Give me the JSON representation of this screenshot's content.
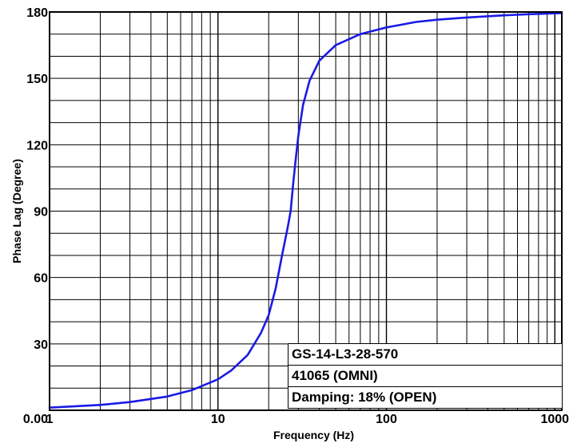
{
  "chart_data": {
    "type": "line",
    "xlabel": "Frequency (Hz)",
    "ylabel": "Phase Lag (Degree)",
    "x_scale": "log",
    "xlim": [
      1,
      1100
    ],
    "ylim": [
      0,
      180
    ],
    "x_ticks": [
      {
        "value": 1,
        "label": "1"
      },
      {
        "value": 10,
        "label": "10"
      },
      {
        "value": 100,
        "label": "100"
      },
      {
        "value": 1000,
        "label": "1000"
      }
    ],
    "y_ticks": [
      {
        "value": 0,
        "label": "0.00"
      },
      {
        "value": 30,
        "label": "30"
      },
      {
        "value": 60,
        "label": "60"
      },
      {
        "value": 90,
        "label": "90"
      },
      {
        "value": 120,
        "label": "120"
      },
      {
        "value": 150,
        "label": "150"
      },
      {
        "value": 180,
        "label": "180"
      }
    ],
    "grid": true,
    "line_color": "#1a1ae6",
    "series": [
      {
        "x": [
          1,
          2,
          3,
          5,
          7,
          10,
          12,
          15,
          18,
          20,
          22,
          24,
          26,
          27,
          28,
          29,
          30,
          32,
          35,
          40,
          50,
          70,
          100,
          150,
          200,
          300,
          500,
          700,
          1000,
          1100
        ],
        "y": [
          1.2,
          2.4,
          3.7,
          6.2,
          9.1,
          14,
          18,
          25,
          35,
          43,
          55,
          70,
          83,
          90,
          103,
          114,
          124,
          138,
          149,
          158,
          165,
          170,
          173,
          175.5,
          176.5,
          177.5,
          178.5,
          179,
          179.4,
          179.5
        ]
      }
    ],
    "legend": {
      "placement": "bottom-right",
      "lines": [
        "GS-14-L3-28-570",
        "41065 (OMNI)",
        "Damping: 18% (OPEN)"
      ]
    }
  }
}
